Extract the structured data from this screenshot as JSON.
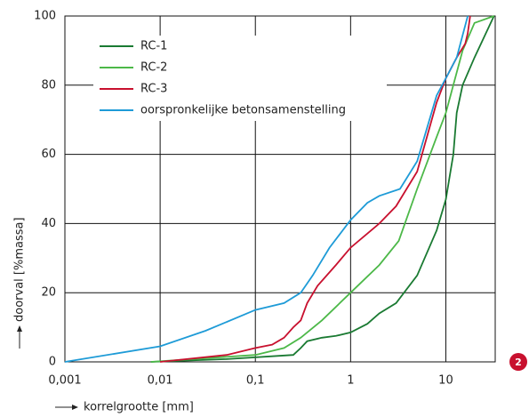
{
  "chart_data": {
    "type": "line",
    "x_label": "korrelgrootte [mm]",
    "y_label": "doorval [%massa]",
    "log_x": true,
    "grid": true,
    "xlim": [
      0.001,
      33
    ],
    "ylim": [
      0,
      100
    ],
    "xticks": [
      {
        "value": 0.001,
        "label": "0,001"
      },
      {
        "value": 0.01,
        "label": "0,01"
      },
      {
        "value": 0.1,
        "label": "0,1"
      },
      1,
      10
    ],
    "yticks": [
      0,
      20,
      40,
      60,
      80,
      100
    ],
    "series": [
      {
        "name": "RC-1",
        "color": "#1a7a32",
        "x": [
          0.008,
          0.05,
          0.25,
          0.3,
          0.35,
          0.5,
          0.7,
          1,
          1.5,
          2,
          3,
          5,
          8,
          10,
          12,
          13,
          15,
          20,
          32
        ],
        "values": [
          0,
          0.8,
          2,
          4,
          6,
          7,
          7.5,
          8.5,
          11,
          14,
          17,
          25,
          38,
          47,
          60,
          72,
          80,
          88,
          100
        ]
      },
      {
        "name": "RC-2",
        "color": "#4cb848",
        "x": [
          0.008,
          0.1,
          0.2,
          0.3,
          0.5,
          1,
          2,
          3.2,
          5,
          8,
          10,
          15,
          20,
          32
        ],
        "values": [
          0,
          2,
          4,
          7,
          12,
          20,
          28,
          35,
          50,
          65,
          72,
          90,
          98,
          100
        ]
      },
      {
        "name": "RC-3",
        "color": "#c8102e",
        "x": [
          0.01,
          0.05,
          0.1,
          0.15,
          0.2,
          0.25,
          0.3,
          0.35,
          0.45,
          0.7,
          1,
          2,
          3,
          5,
          8,
          10,
          13,
          16,
          17,
          18
        ],
        "values": [
          0,
          2,
          4,
          5,
          7,
          10,
          12,
          17,
          22,
          28,
          33,
          40,
          45,
          55,
          75,
          82,
          88,
          92,
          95,
          100
        ]
      },
      {
        "name": "oorspronkelijke betonsamenstelling",
        "color": "#1e9bd7",
        "x": [
          0.001,
          0.01,
          0.03,
          0.1,
          0.2,
          0.3,
          0.4,
          0.6,
          1,
          1.5,
          2,
          3.3,
          5,
          8,
          10,
          13,
          17
        ],
        "values": [
          0,
          4.5,
          9,
          15,
          17,
          20,
          25,
          33,
          41,
          46,
          48,
          50,
          58,
          77,
          82,
          88,
          100
        ]
      }
    ]
  },
  "badge": "2"
}
